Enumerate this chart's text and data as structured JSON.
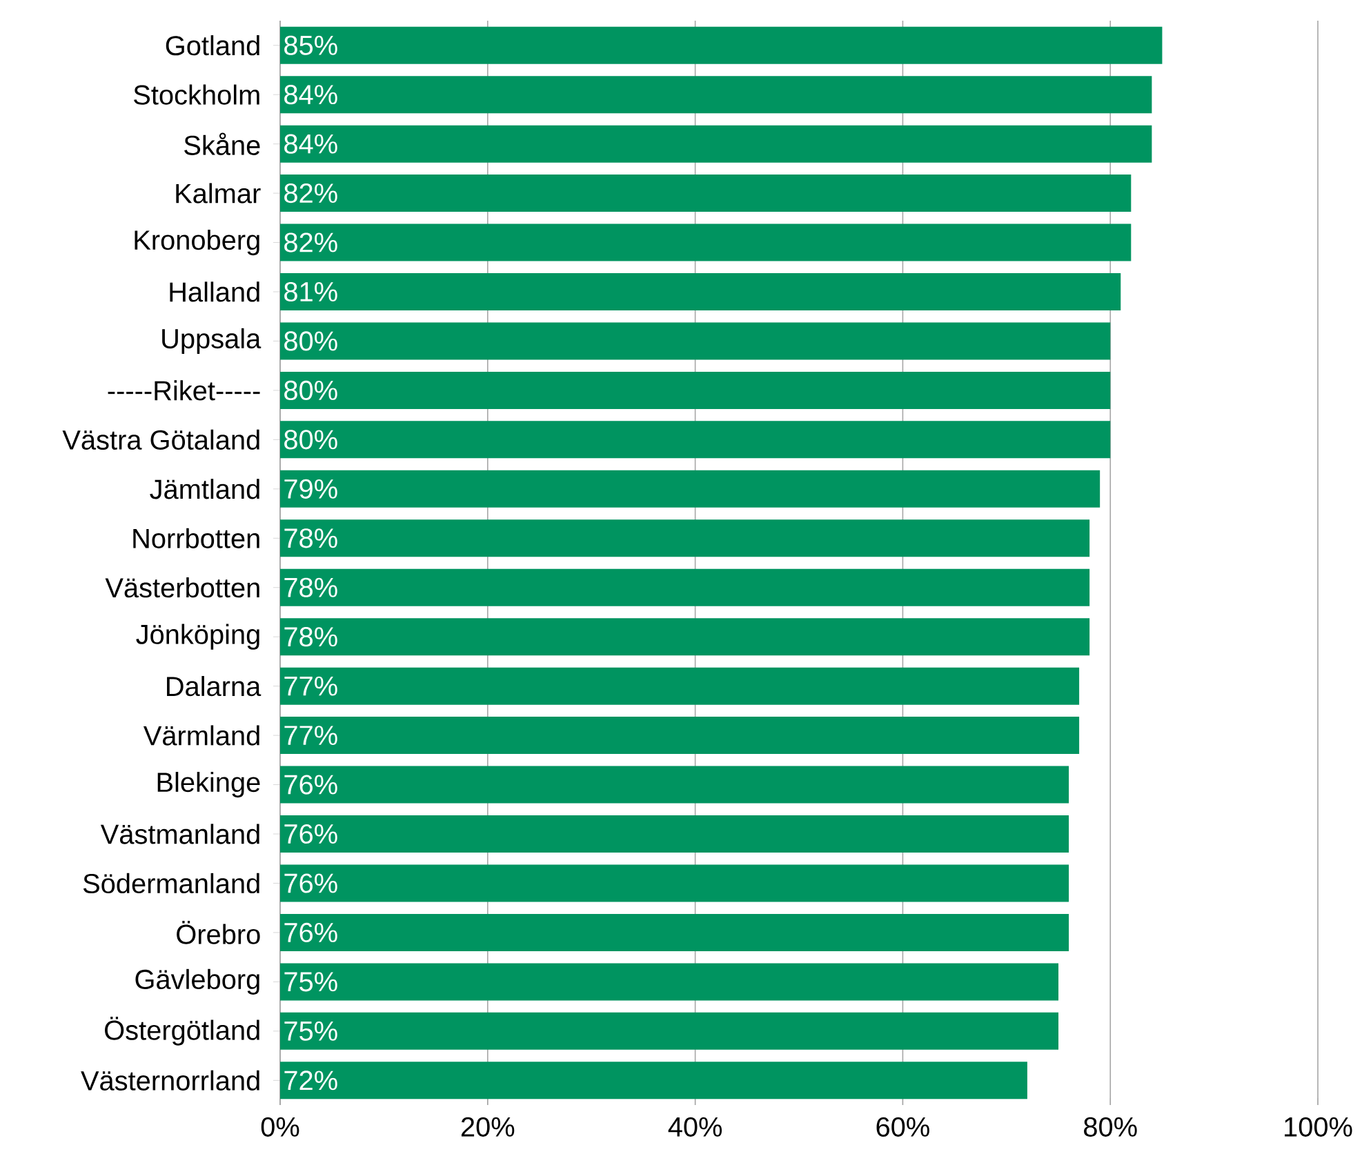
{
  "chart_data": {
    "type": "bar",
    "orientation": "horizontal",
    "categories": [
      "Gotland",
      "Stockholm",
      "Skåne",
      "Kalmar",
      "Kronoberg",
      "Halland",
      "Uppsala",
      "-----Riket-----",
      "Västra Götaland",
      "Jämtland",
      "Norrbotten",
      "Västerbotten",
      "Jönköping",
      "Dalarna",
      "Värmland",
      "Blekinge",
      "Västmanland",
      "Södermanland",
      "Örebro",
      "Gävleborg",
      "Östergötland",
      "Västernorrland"
    ],
    "values": [
      85,
      84,
      84,
      82,
      82,
      81,
      80,
      80,
      80,
      79,
      78,
      78,
      78,
      77,
      77,
      76,
      76,
      76,
      76,
      75,
      75,
      72
    ],
    "value_labels": [
      "85%",
      "84%",
      "84%",
      "82%",
      "82%",
      "81%",
      "80%",
      "80%",
      "80%",
      "79%",
      "78%",
      "78%",
      "78%",
      "77%",
      "77%",
      "76%",
      "76%",
      "76%",
      "76%",
      "75%",
      "75%",
      "72%"
    ],
    "color": "#009460",
    "xlim": [
      0,
      100
    ],
    "xticks": [
      {
        "value": 0,
        "label": "0%"
      },
      {
        "value": 20,
        "label": "20%"
      },
      {
        "value": 40,
        "label": "40%"
      },
      {
        "value": 60,
        "label": "60%"
      },
      {
        "value": 80,
        "label": "80%"
      },
      {
        "value": 100,
        "label": "100%"
      }
    ],
    "grid": "x"
  }
}
